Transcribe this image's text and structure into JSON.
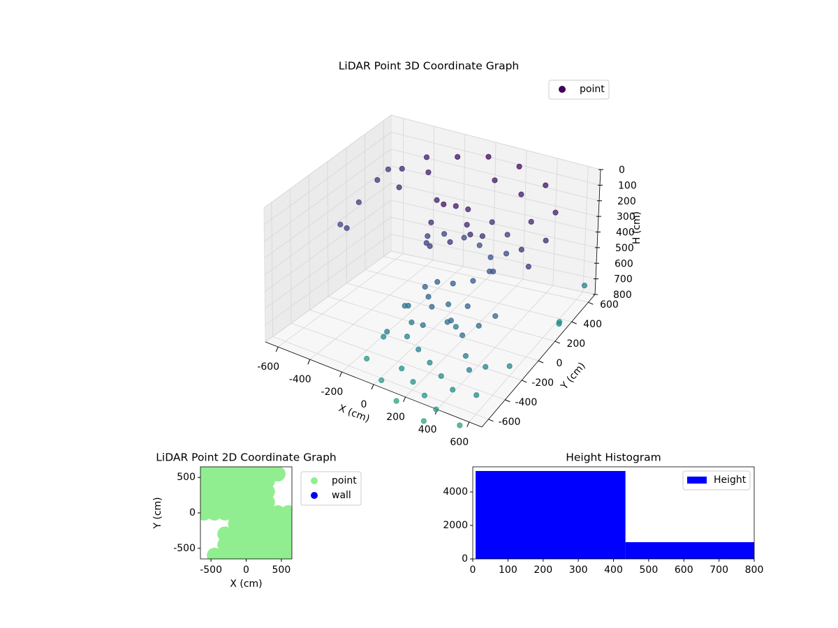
{
  "chart_data": [
    {
      "type": "scatter3d",
      "title": "LiDAR Point 3D Coordinate Graph",
      "xlabel": "X (cm)",
      "ylabel": "Y (cm)",
      "zlabel": "H (cm)",
      "xlim": [
        -680,
        680
      ],
      "ylim": [
        -680,
        680
      ],
      "zlim": [
        0,
        800
      ],
      "z_inverted": true,
      "xticks": [
        -600,
        -400,
        -200,
        0,
        200,
        400,
        600
      ],
      "yticks": [
        -600,
        -400,
        -200,
        0,
        200,
        400,
        600
      ],
      "zticks": [
        0,
        100,
        200,
        300,
        400,
        500,
        600,
        700,
        800
      ],
      "grid": true,
      "colormap": "viridis",
      "legend": "upper right",
      "series": [
        {
          "name": "point",
          "color": "#440154",
          "x": [
            -600,
            -500,
            -400,
            -200,
            0,
            200,
            400,
            550,
            600,
            600,
            -600,
            -600,
            -500,
            -400,
            -300,
            100,
            300,
            450,
            500,
            -650,
            0,
            50,
            100,
            150,
            200,
            250,
            100,
            0,
            -50,
            -100,
            -50,
            50,
            150,
            250,
            300,
            250,
            150,
            50,
            -50,
            -100,
            200,
            300,
            350,
            350,
            0,
            50,
            100,
            150,
            -50,
            200,
            250,
            300,
            -100,
            0,
            100,
            350,
            400,
            450,
            0,
            100,
            200,
            300,
            400,
            -100,
            -150,
            50,
            150,
            250,
            350,
            450,
            500,
            550,
            600,
            -50,
            100,
            300,
            200,
            400,
            600,
            650,
            650,
            500,
            -200
          ],
          "y": [
            400,
            500,
            600,
            600,
            600,
            600,
            550,
            400,
            200,
            0,
            200,
            0,
            -100,
            300,
            450,
            500,
            450,
            300,
            100,
            600,
            100,
            150,
            200,
            100,
            50,
            100,
            0,
            -50,
            0,
            100,
            200,
            250,
            250,
            200,
            100,
            0,
            -50,
            -50,
            50,
            200,
            300,
            300,
            200,
            50,
            -100,
            -150,
            -200,
            -100,
            -200,
            -200,
            -250,
            -150,
            -150,
            -250,
            -300,
            -300,
            -200,
            -100,
            -300,
            -350,
            -400,
            -450,
            -500,
            -350,
            -300,
            -450,
            -500,
            -550,
            -600,
            -400,
            -300,
            -500,
            -200,
            -500,
            -600,
            -650,
            -100,
            -350,
            400,
            600,
            300,
            -600,
            -400
          ],
          "z": [
            250,
            200,
            150,
            100,
            50,
            60,
            100,
            150,
            200,
            250,
            300,
            350,
            300,
            200,
            150,
            120,
            130,
            180,
            230,
            280,
            100,
            120,
            150,
            180,
            200,
            220,
            250,
            280,
            300,
            320,
            340,
            360,
            380,
            400,
            420,
            440,
            460,
            480,
            200,
            150,
            250,
            300,
            350,
            380,
            500,
            520,
            540,
            560,
            580,
            600,
            550,
            500,
            620,
            640,
            600,
            580,
            560,
            540,
            700,
            720,
            740,
            760,
            780,
            680,
            750,
            800,
            820,
            840,
            860,
            700,
            720,
            760,
            740,
            880,
            900,
            920,
            680,
            660,
            820,
            700,
            760,
            900,
            850
          ]
        }
      ]
    },
    {
      "type": "scatter",
      "title": "LiDAR Point 2D Coordinate Graph",
      "xlabel": "X (cm)",
      "ylabel": "Y (cm)",
      "xlim": [
        -650,
        650
      ],
      "ylim": [
        -650,
        650
      ],
      "xticks": [
        -500,
        0,
        500
      ],
      "yticks": [
        -500,
        0,
        500
      ],
      "legend": "outside upper right",
      "series": [
        {
          "name": "point",
          "color": "#90ee90",
          "x": [
            -600,
            -450,
            -300,
            -150,
            0,
            150,
            300,
            -600,
            -450,
            -300,
            -150,
            0,
            150,
            300,
            -600,
            -450,
            -300,
            -150,
            0,
            150,
            300,
            -600,
            -450,
            -300,
            -150,
            0,
            150,
            300,
            -600,
            -450,
            -300,
            -150,
            0,
            150,
            300,
            450,
            600,
            -150,
            0,
            150,
            300,
            450,
            600,
            -300,
            -150,
            0,
            150,
            300,
            450,
            600,
            -300,
            -150,
            0,
            150,
            300,
            450,
            600,
            -450,
            -300,
            -150,
            0,
            150,
            300,
            450,
            600,
            450
          ],
          "y": [
            600,
            600,
            600,
            600,
            600,
            600,
            600,
            450,
            450,
            450,
            450,
            450,
            450,
            450,
            300,
            300,
            300,
            300,
            300,
            300,
            300,
            150,
            150,
            150,
            150,
            150,
            150,
            150,
            0,
            0,
            0,
            0,
            0,
            0,
            0,
            0,
            0,
            -150,
            -150,
            -150,
            -150,
            -150,
            -150,
            -300,
            -300,
            -300,
            -300,
            -300,
            -300,
            -300,
            -450,
            -450,
            -450,
            -450,
            -450,
            -450,
            -450,
            -600,
            -600,
            -600,
            -600,
            -600,
            -600,
            -600,
            -600,
            550
          ]
        },
        {
          "name": "wall",
          "color": "#0000ff",
          "x": [],
          "y": []
        }
      ]
    },
    {
      "type": "histogram",
      "title": "Height Histogram",
      "xlim": [
        0,
        800
      ],
      "ylim": [
        0,
        5500
      ],
      "xticks": [
        0,
        100,
        200,
        300,
        400,
        500,
        600,
        700,
        800
      ],
      "yticks": [
        0,
        2000,
        4000
      ],
      "legend": "upper right",
      "series": [
        {
          "name": "Height",
          "color": "#0000ff",
          "bins": [
            8,
            434,
            800
          ],
          "counts": [
            5250,
            1000
          ]
        }
      ]
    }
  ]
}
